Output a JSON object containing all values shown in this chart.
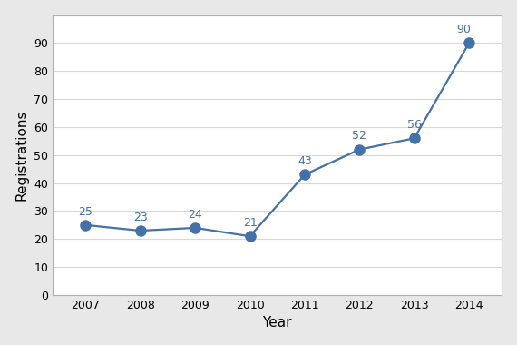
{
  "years": [
    2007,
    2008,
    2009,
    2010,
    2011,
    2012,
    2013,
    2014
  ],
  "values": [
    25,
    23,
    24,
    21,
    43,
    52,
    56,
    90
  ],
  "line_color": "#4472a8",
  "marker_color": "#4472a8",
  "xlabel": "Year",
  "ylabel": "Registrations",
  "xlim": [
    2006.4,
    2014.6
  ],
  "ylim": [
    0,
    100
  ],
  "yticks": [
    0,
    10,
    20,
    30,
    40,
    50,
    60,
    70,
    80,
    90
  ],
  "grid_color": "#d8d8d8",
  "background_color": "#e8e8e8",
  "plot_background": "#ffffff",
  "marker_size": 8,
  "line_width": 1.6,
  "label_fontsize": 9,
  "axis_label_fontsize": 11,
  "tick_fontsize": 9,
  "spine_color": "#b0b0b0"
}
